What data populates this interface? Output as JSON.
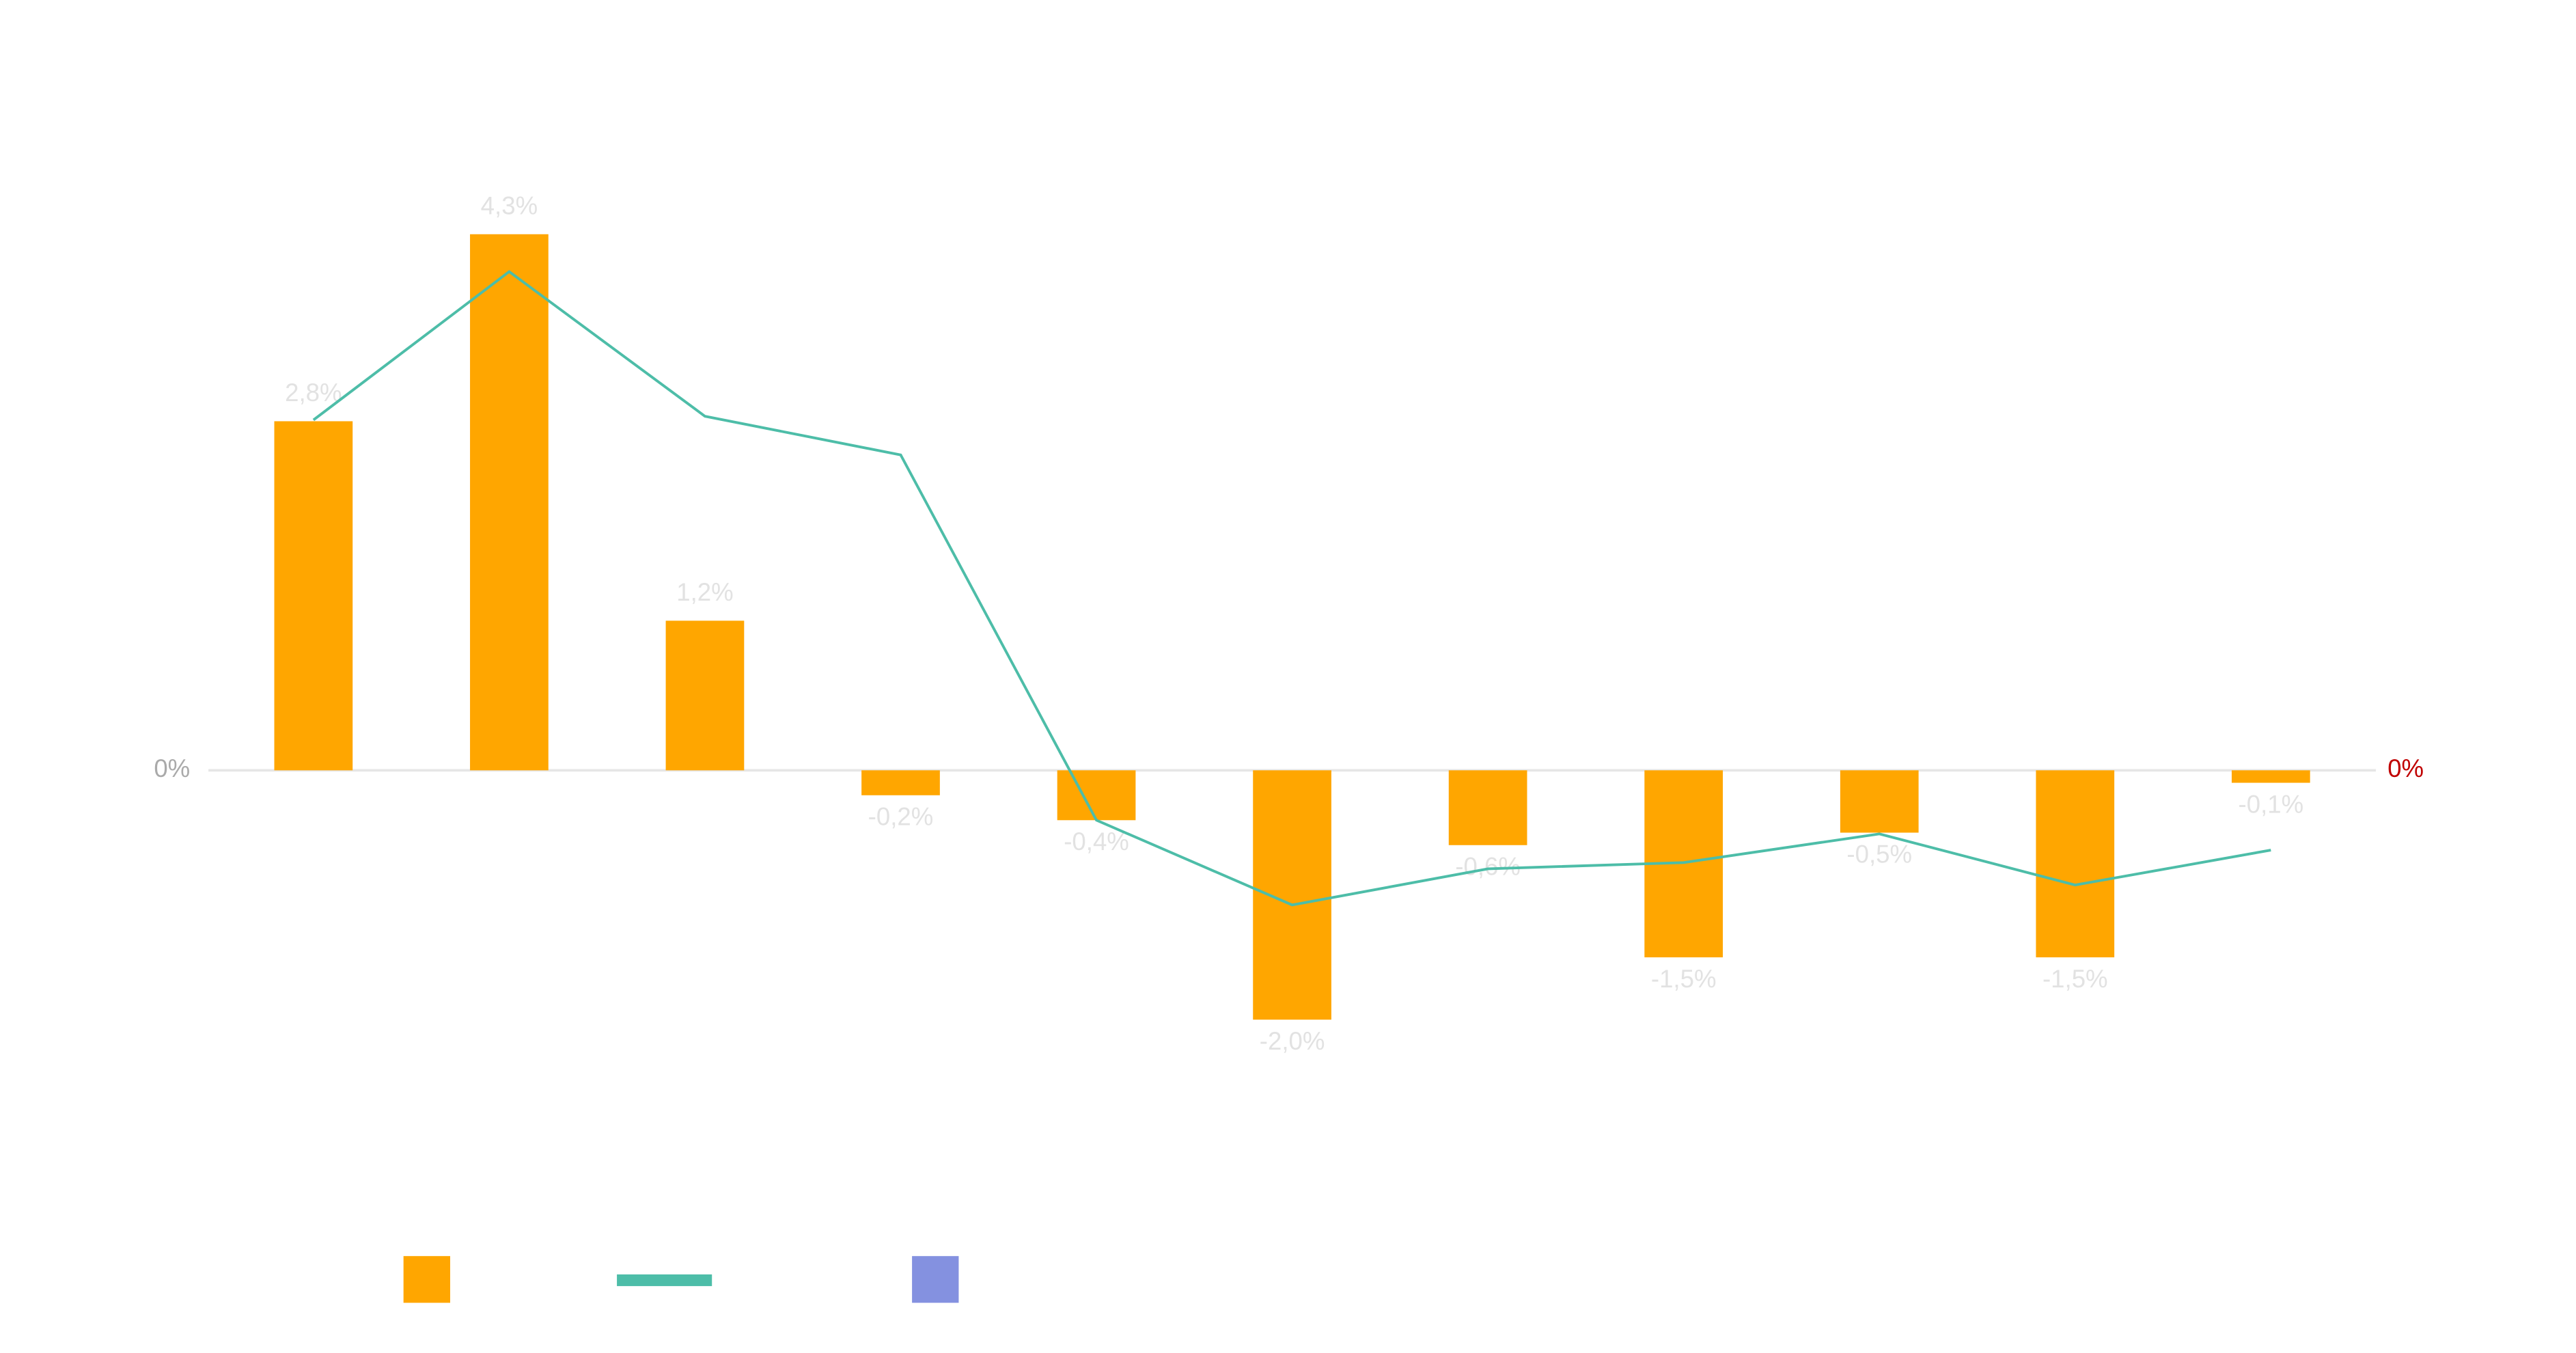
{
  "chart_data": {
    "type": "bar",
    "categories": [
      null,
      null,
      null,
      null,
      null,
      null,
      null,
      null,
      null,
      null,
      null
    ],
    "series": [
      {
        "type": "bar",
        "color": "#ffa600",
        "values": [
          2.8,
          4.3,
          1.2,
          -0.2,
          -0.4,
          -2.0,
          -0.6,
          -1.5,
          -0.5,
          -1.5,
          -0.1
        ],
        "value_labels": [
          "2,8%",
          "4,3%",
          "1,2%",
          "-0,2%",
          "-0,4%",
          "-2,0%",
          "-0,6%",
          "-1,5%",
          "-0,5%",
          "-1,5%",
          "-0,1%"
        ]
      },
      {
        "type": "line",
        "color": "#4dbda8",
        "values": [
          2.81,
          4.0,
          2.84,
          2.53,
          -0.4,
          -1.08,
          -0.79,
          -0.74,
          -0.51,
          -0.92,
          -0.64
        ]
      },
      {
        "type": "bar",
        "color": "#8491e0",
        "values": [
          null,
          null,
          null,
          null,
          null,
          null,
          null,
          null,
          null,
          null,
          null
        ]
      }
    ],
    "ylim": [
      -3,
      5
    ],
    "yticks": [
      {
        "value": 0,
        "label": "0%"
      }
    ],
    "y2lim": [
      -3,
      5
    ],
    "y2ticks": [
      {
        "value": 0,
        "label": "0%"
      }
    ],
    "y2color": "#c00000",
    "legend": "bottom-left"
  }
}
